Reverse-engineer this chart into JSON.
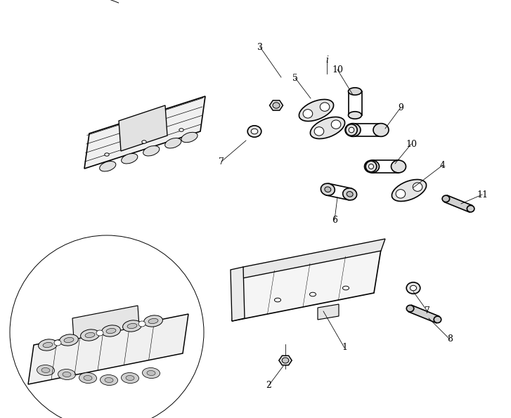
{
  "background_color": "#ffffff",
  "line_color": "#000000",
  "line_width": 1.2,
  "fig_width": 7.27,
  "fig_height": 5.95,
  "dpi": 100
}
